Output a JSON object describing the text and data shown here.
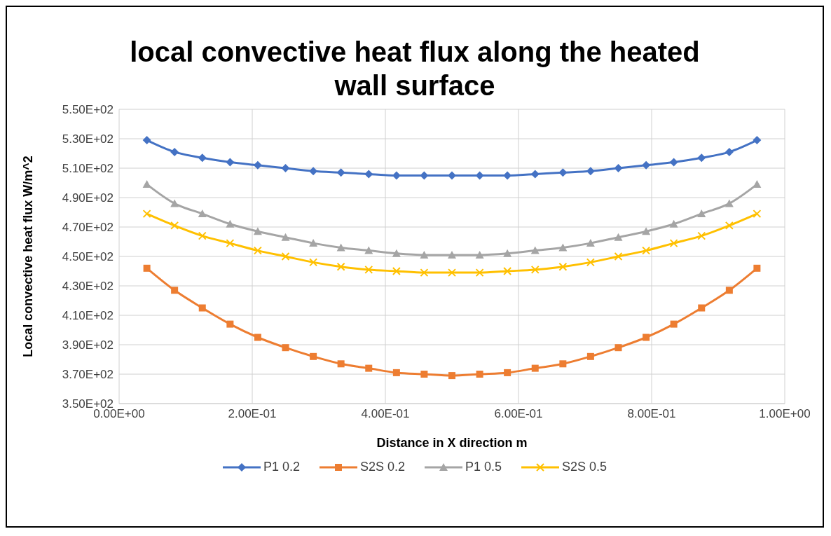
{
  "chart_data": {
    "type": "line",
    "title": "local convective heat flux along the heated wall surface",
    "xlabel": "Distance in X direction m",
    "ylabel": "Local convective heat flux W/m^2",
    "x": [
      0.0417,
      0.0833,
      0.125,
      0.1667,
      0.2083,
      0.25,
      0.2917,
      0.3333,
      0.375,
      0.4167,
      0.4583,
      0.5,
      0.5417,
      0.5833,
      0.625,
      0.6667,
      0.7083,
      0.75,
      0.7917,
      0.8333,
      0.875,
      0.9167,
      0.9583
    ],
    "series": [
      {
        "name": "P1 0.2",
        "color": "#4472c4",
        "marker": "diamond",
        "values": [
          529,
          521,
          517,
          514,
          512,
          510,
          508,
          507,
          506,
          505,
          505,
          505,
          505,
          505,
          506,
          507,
          508,
          510,
          512,
          514,
          517,
          521,
          529
        ]
      },
      {
        "name": "S2S 0.2",
        "color": "#ed7d31",
        "marker": "square",
        "values": [
          442,
          427,
          415,
          404,
          395,
          388,
          382,
          377,
          374,
          371,
          370,
          369,
          370,
          371,
          374,
          377,
          382,
          388,
          395,
          404,
          415,
          427,
          442
        ]
      },
      {
        "name": "P1 0.5",
        "color": "#a5a5a5",
        "marker": "triangle",
        "values": [
          499,
          486,
          479,
          472,
          467,
          463,
          459,
          456,
          454,
          452,
          451,
          451,
          451,
          452,
          454,
          456,
          459,
          463,
          467,
          472,
          479,
          486,
          499
        ]
      },
      {
        "name": "S2S 0.5",
        "color": "#ffc000",
        "marker": "cross",
        "values": [
          479,
          471,
          464,
          459,
          454,
          450,
          446,
          443,
          441,
          440,
          439,
          439,
          439,
          440,
          441,
          443,
          446,
          450,
          454,
          459,
          464,
          471,
          479
        ]
      }
    ],
    "xlim": [
      0,
      1
    ],
    "xticks": [
      {
        "value": 0,
        "label": "0.00E+00"
      },
      {
        "value": 0.2,
        "label": "2.00E-01"
      },
      {
        "value": 0.4,
        "label": "4.00E-01"
      },
      {
        "value": 0.6,
        "label": "6.00E-01"
      },
      {
        "value": 0.8,
        "label": "8.00E-01"
      },
      {
        "value": 1,
        "label": "1.00E+00"
      }
    ],
    "ylim": [
      350,
      550
    ],
    "yticks": [
      {
        "value": 350,
        "label": "3.50E+02"
      },
      {
        "value": 370,
        "label": "3.70E+02"
      },
      {
        "value": 390,
        "label": "3.90E+02"
      },
      {
        "value": 410,
        "label": "4.10E+02"
      },
      {
        "value": 430,
        "label": "4.30E+02"
      },
      {
        "value": 450,
        "label": "4.50E+02"
      },
      {
        "value": 470,
        "label": "4.70E+02"
      },
      {
        "value": 490,
        "label": "4.90E+02"
      },
      {
        "value": 510,
        "label": "5.10E+02"
      },
      {
        "value": 530,
        "label": "5.30E+02"
      },
      {
        "value": 550,
        "label": "5.50E+02"
      }
    ],
    "grid": true,
    "legend": "bottom"
  }
}
